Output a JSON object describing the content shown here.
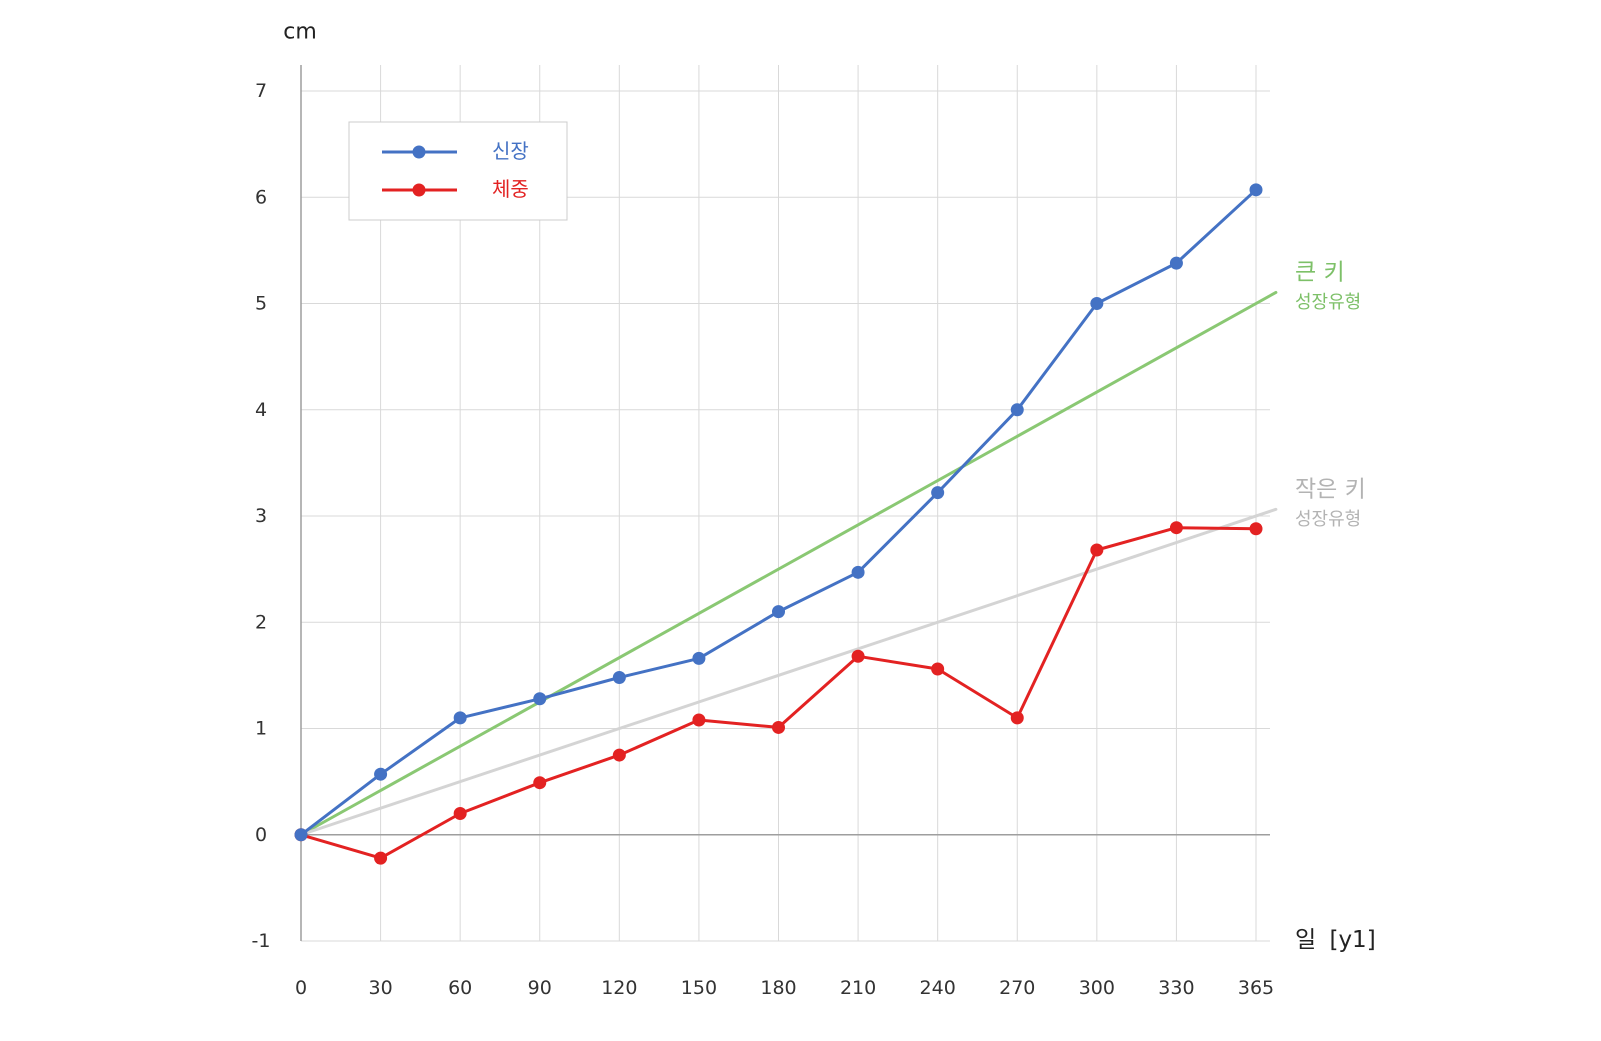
{
  "chart_data": {
    "type": "line",
    "ylabel": "cm",
    "xlabel": "일 [y1]",
    "categories": [
      "0",
      "30",
      "60",
      "90",
      "120",
      "150",
      "180",
      "210",
      "240",
      "270",
      "300",
      "330",
      "365"
    ],
    "ylim": [
      -1,
      7
    ],
    "yticks": [
      -1,
      0,
      1,
      2,
      3,
      4,
      5,
      6,
      7
    ],
    "grid": true,
    "legend": "top-left",
    "series": [
      {
        "name": "신장",
        "color": "#4472C4",
        "values": [
          0,
          0.57,
          1.1,
          1.28,
          1.48,
          1.66,
          2.1,
          2.47,
          3.22,
          4.0,
          5.0,
          5.38,
          6.07
        ]
      },
      {
        "name": "체중",
        "color": "#E32222",
        "values": [
          0,
          -0.22,
          0.2,
          0.49,
          0.75,
          1.08,
          1.01,
          1.68,
          1.56,
          1.1,
          2.68,
          2.89,
          2.88
        ]
      }
    ],
    "reference_lines": [
      {
        "label": "큰 키",
        "sublabel": "성장유형",
        "color": "#8AC873",
        "label_color": "#7DC068",
        "from": {
          "x": "0",
          "y": 0
        },
        "to": {
          "x": "365",
          "y": 5
        }
      },
      {
        "label": "작은 키",
        "sublabel": "성장유형",
        "color": "#D4D4D4",
        "label_color": "#B3B3B3",
        "from": {
          "x": "0",
          "y": 0
        },
        "to": {
          "x": "365",
          "y": 3
        }
      }
    ]
  }
}
